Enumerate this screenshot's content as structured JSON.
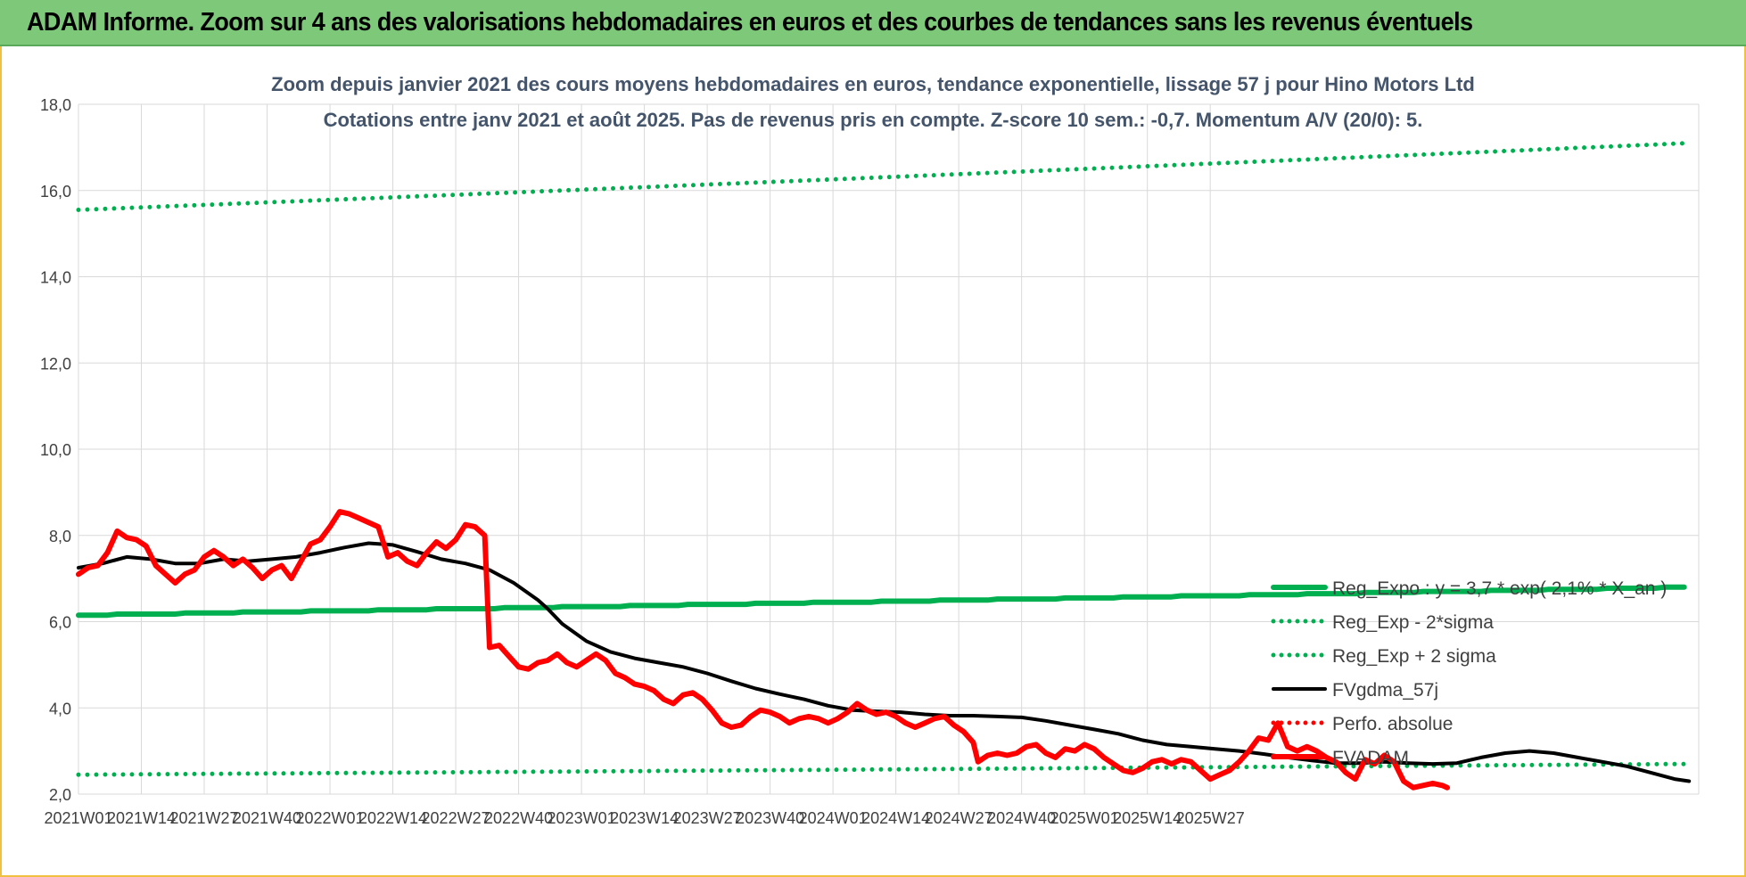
{
  "banner": {
    "title": "ADAM Informe. Zoom sur 4 ans des valorisations hebdomadaires en euros et des courbes de tendances sans les revenus éventuels"
  },
  "chart_data": {
    "type": "line",
    "title": "Zoom depuis janvier 2021 des cours moyens hebdomadaires en euros, tendance exponentielle, lissage 57 j pour Hino Motors Ltd",
    "subtitle": "Cotations entre janv 2021 et août 2025.  Pas de revenus pris en compte. Z-score 10 sem.: -0,7. Momentum A/V (20/0): 5.",
    "ylim": [
      2.0,
      18.0
    ],
    "y_ticks": [
      "2,0",
      "4,0",
      "6,0",
      "8,0",
      "10,0",
      "12,0",
      "14,0",
      "16,0",
      "18,0"
    ],
    "x_ticks": [
      "2021W01",
      "2021W14",
      "2021W27",
      "2021W40",
      "2022W01",
      "2022W14",
      "2022W27",
      "2022W40",
      "2023W01",
      "2023W14",
      "2023W27",
      "2023W40",
      "2024W01",
      "2024W14",
      "2024W27",
      "2024W40",
      "2025W01",
      "2025W14",
      "2025W27"
    ],
    "grid": true,
    "legend_position": "right",
    "series": [
      {
        "name": "Reg_Expo : y = 3,7 * exp( 2,1% * X_an )",
        "color": "#00b050",
        "style": "solid-thick",
        "start": 6.15,
        "end": 6.8
      },
      {
        "name": "Reg_Exp - 2*sigma",
        "color": "#00b050",
        "style": "dotted",
        "start": 2.45,
        "end": 2.7
      },
      {
        "name": "Reg_Exp + 2 sigma",
        "color": "#00b050",
        "style": "dotted",
        "start": 15.55,
        "end": 17.1
      },
      {
        "name": "FVgdma_57j",
        "color": "#000000",
        "style": "solid",
        "points": [
          [
            0,
            7.25
          ],
          [
            5,
            7.35
          ],
          [
            10,
            7.5
          ],
          [
            15,
            7.45
          ],
          [
            20,
            7.35
          ],
          [
            25,
            7.35
          ],
          [
            30,
            7.45
          ],
          [
            35,
            7.4
          ],
          [
            40,
            7.45
          ],
          [
            45,
            7.5
          ],
          [
            50,
            7.6
          ],
          [
            55,
            7.72
          ],
          [
            60,
            7.82
          ],
          [
            65,
            7.78
          ],
          [
            70,
            7.62
          ],
          [
            75,
            7.45
          ],
          [
            80,
            7.35
          ],
          [
            85,
            7.2
          ],
          [
            90,
            6.9
          ],
          [
            95,
            6.5
          ],
          [
            97,
            6.3
          ],
          [
            100,
            5.95
          ],
          [
            105,
            5.55
          ],
          [
            110,
            5.3
          ],
          [
            115,
            5.15
          ],
          [
            120,
            5.05
          ],
          [
            125,
            4.95
          ],
          [
            130,
            4.8
          ],
          [
            135,
            4.62
          ],
          [
            140,
            4.45
          ],
          [
            145,
            4.32
          ],
          [
            150,
            4.2
          ],
          [
            155,
            4.05
          ],
          [
            160,
            3.95
          ],
          [
            165,
            3.92
          ],
          [
            170,
            3.9
          ],
          [
            175,
            3.85
          ],
          [
            180,
            3.82
          ],
          [
            185,
            3.82
          ],
          [
            190,
            3.8
          ],
          [
            195,
            3.78
          ],
          [
            200,
            3.7
          ],
          [
            205,
            3.6
          ],
          [
            210,
            3.5
          ],
          [
            215,
            3.4
          ],
          [
            220,
            3.25
          ],
          [
            225,
            3.15
          ],
          [
            230,
            3.1
          ],
          [
            235,
            3.05
          ],
          [
            240,
            3.0
          ],
          [
            245,
            2.93
          ],
          [
            250,
            2.85
          ],
          [
            255,
            2.78
          ],
          [
            260,
            2.72
          ],
          [
            265,
            2.72
          ],
          [
            270,
            2.75
          ],
          [
            275,
            2.72
          ],
          [
            280,
            2.7
          ],
          [
            285,
            2.72
          ],
          [
            290,
            2.85
          ],
          [
            295,
            2.95
          ],
          [
            300,
            3.0
          ],
          [
            305,
            2.95
          ],
          [
            310,
            2.85
          ],
          [
            315,
            2.75
          ],
          [
            320,
            2.65
          ],
          [
            325,
            2.5
          ],
          [
            330,
            2.35
          ],
          [
            333,
            2.3
          ]
        ]
      },
      {
        "name": "Perfo. absolue",
        "color": "#ff0000",
        "style": "dotted",
        "points": []
      },
      {
        "name": "FVADAM",
        "color": "#ff0000",
        "style": "solid-thick",
        "points": [
          [
            0,
            7.1
          ],
          [
            2,
            7.25
          ],
          [
            4,
            7.3
          ],
          [
            6,
            7.6
          ],
          [
            8,
            8.1
          ],
          [
            10,
            7.95
          ],
          [
            12,
            7.9
          ],
          [
            14,
            7.75
          ],
          [
            16,
            7.3
          ],
          [
            18,
            7.1
          ],
          [
            20,
            6.9
          ],
          [
            22,
            7.1
          ],
          [
            24,
            7.2
          ],
          [
            26,
            7.5
          ],
          [
            28,
            7.65
          ],
          [
            30,
            7.5
          ],
          [
            32,
            7.3
          ],
          [
            34,
            7.45
          ],
          [
            36,
            7.25
          ],
          [
            38,
            7.0
          ],
          [
            40,
            7.2
          ],
          [
            42,
            7.3
          ],
          [
            44,
            7.0
          ],
          [
            46,
            7.4
          ],
          [
            48,
            7.8
          ],
          [
            50,
            7.9
          ],
          [
            52,
            8.2
          ],
          [
            54,
            8.55
          ],
          [
            56,
            8.5
          ],
          [
            58,
            8.4
          ],
          [
            60,
            8.3
          ],
          [
            62,
            8.2
          ],
          [
            64,
            7.5
          ],
          [
            66,
            7.6
          ],
          [
            68,
            7.4
          ],
          [
            70,
            7.3
          ],
          [
            72,
            7.6
          ],
          [
            74,
            7.85
          ],
          [
            76,
            7.7
          ],
          [
            78,
            7.9
          ],
          [
            80,
            8.25
          ],
          [
            82,
            8.2
          ],
          [
            84,
            8.0
          ],
          [
            85,
            5.4
          ],
          [
            87,
            5.45
          ],
          [
            89,
            5.2
          ],
          [
            91,
            4.95
          ],
          [
            93,
            4.9
          ],
          [
            95,
            5.05
          ],
          [
            97,
            5.1
          ],
          [
            99,
            5.25
          ],
          [
            101,
            5.05
          ],
          [
            103,
            4.95
          ],
          [
            105,
            5.1
          ],
          [
            107,
            5.25
          ],
          [
            109,
            5.1
          ],
          [
            111,
            4.8
          ],
          [
            113,
            4.7
          ],
          [
            115,
            4.55
          ],
          [
            117,
            4.5
          ],
          [
            119,
            4.4
          ],
          [
            121,
            4.2
          ],
          [
            123,
            4.1
          ],
          [
            125,
            4.3
          ],
          [
            127,
            4.35
          ],
          [
            129,
            4.2
          ],
          [
            131,
            3.95
          ],
          [
            133,
            3.65
          ],
          [
            135,
            3.55
          ],
          [
            137,
            3.6
          ],
          [
            139,
            3.8
          ],
          [
            141,
            3.95
          ],
          [
            143,
            3.9
          ],
          [
            145,
            3.8
          ],
          [
            147,
            3.65
          ],
          [
            149,
            3.75
          ],
          [
            151,
            3.8
          ],
          [
            153,
            3.75
          ],
          [
            155,
            3.65
          ],
          [
            157,
            3.75
          ],
          [
            159,
            3.9
          ],
          [
            161,
            4.1
          ],
          [
            163,
            3.95
          ],
          [
            165,
            3.85
          ],
          [
            167,
            3.9
          ],
          [
            169,
            3.8
          ],
          [
            171,
            3.65
          ],
          [
            173,
            3.55
          ],
          [
            175,
            3.65
          ],
          [
            177,
            3.75
          ],
          [
            179,
            3.8
          ],
          [
            181,
            3.6
          ],
          [
            183,
            3.45
          ],
          [
            185,
            3.2
          ],
          [
            186,
            2.75
          ],
          [
            188,
            2.9
          ],
          [
            190,
            2.95
          ],
          [
            192,
            2.9
          ],
          [
            194,
            2.95
          ],
          [
            196,
            3.1
          ],
          [
            198,
            3.15
          ],
          [
            200,
            2.95
          ],
          [
            202,
            2.85
          ],
          [
            204,
            3.05
          ],
          [
            206,
            3.0
          ],
          [
            208,
            3.15
          ],
          [
            210,
            3.05
          ],
          [
            212,
            2.85
          ],
          [
            214,
            2.7
          ],
          [
            216,
            2.55
          ],
          [
            218,
            2.5
          ],
          [
            220,
            2.6
          ],
          [
            222,
            2.75
          ],
          [
            224,
            2.8
          ],
          [
            226,
            2.7
          ],
          [
            228,
            2.8
          ],
          [
            230,
            2.75
          ],
          [
            232,
            2.55
          ],
          [
            234,
            2.35
          ],
          [
            236,
            2.45
          ],
          [
            238,
            2.55
          ],
          [
            240,
            2.75
          ],
          [
            242,
            3.0
          ],
          [
            244,
            3.3
          ],
          [
            246,
            3.25
          ],
          [
            248,
            3.65
          ],
          [
            250,
            3.1
          ],
          [
            252,
            3.0
          ],
          [
            254,
            3.1
          ],
          [
            256,
            3.0
          ],
          [
            258,
            2.85
          ],
          [
            260,
            2.75
          ],
          [
            262,
            2.5
          ],
          [
            264,
            2.35
          ],
          [
            266,
            2.8
          ],
          [
            268,
            2.7
          ],
          [
            270,
            2.9
          ],
          [
            272,
            2.75
          ],
          [
            274,
            2.3
          ],
          [
            276,
            2.15
          ],
          [
            278,
            2.2
          ],
          [
            280,
            2.25
          ],
          [
            282,
            2.2
          ],
          [
            283,
            2.15
          ]
        ]
      }
    ]
  }
}
